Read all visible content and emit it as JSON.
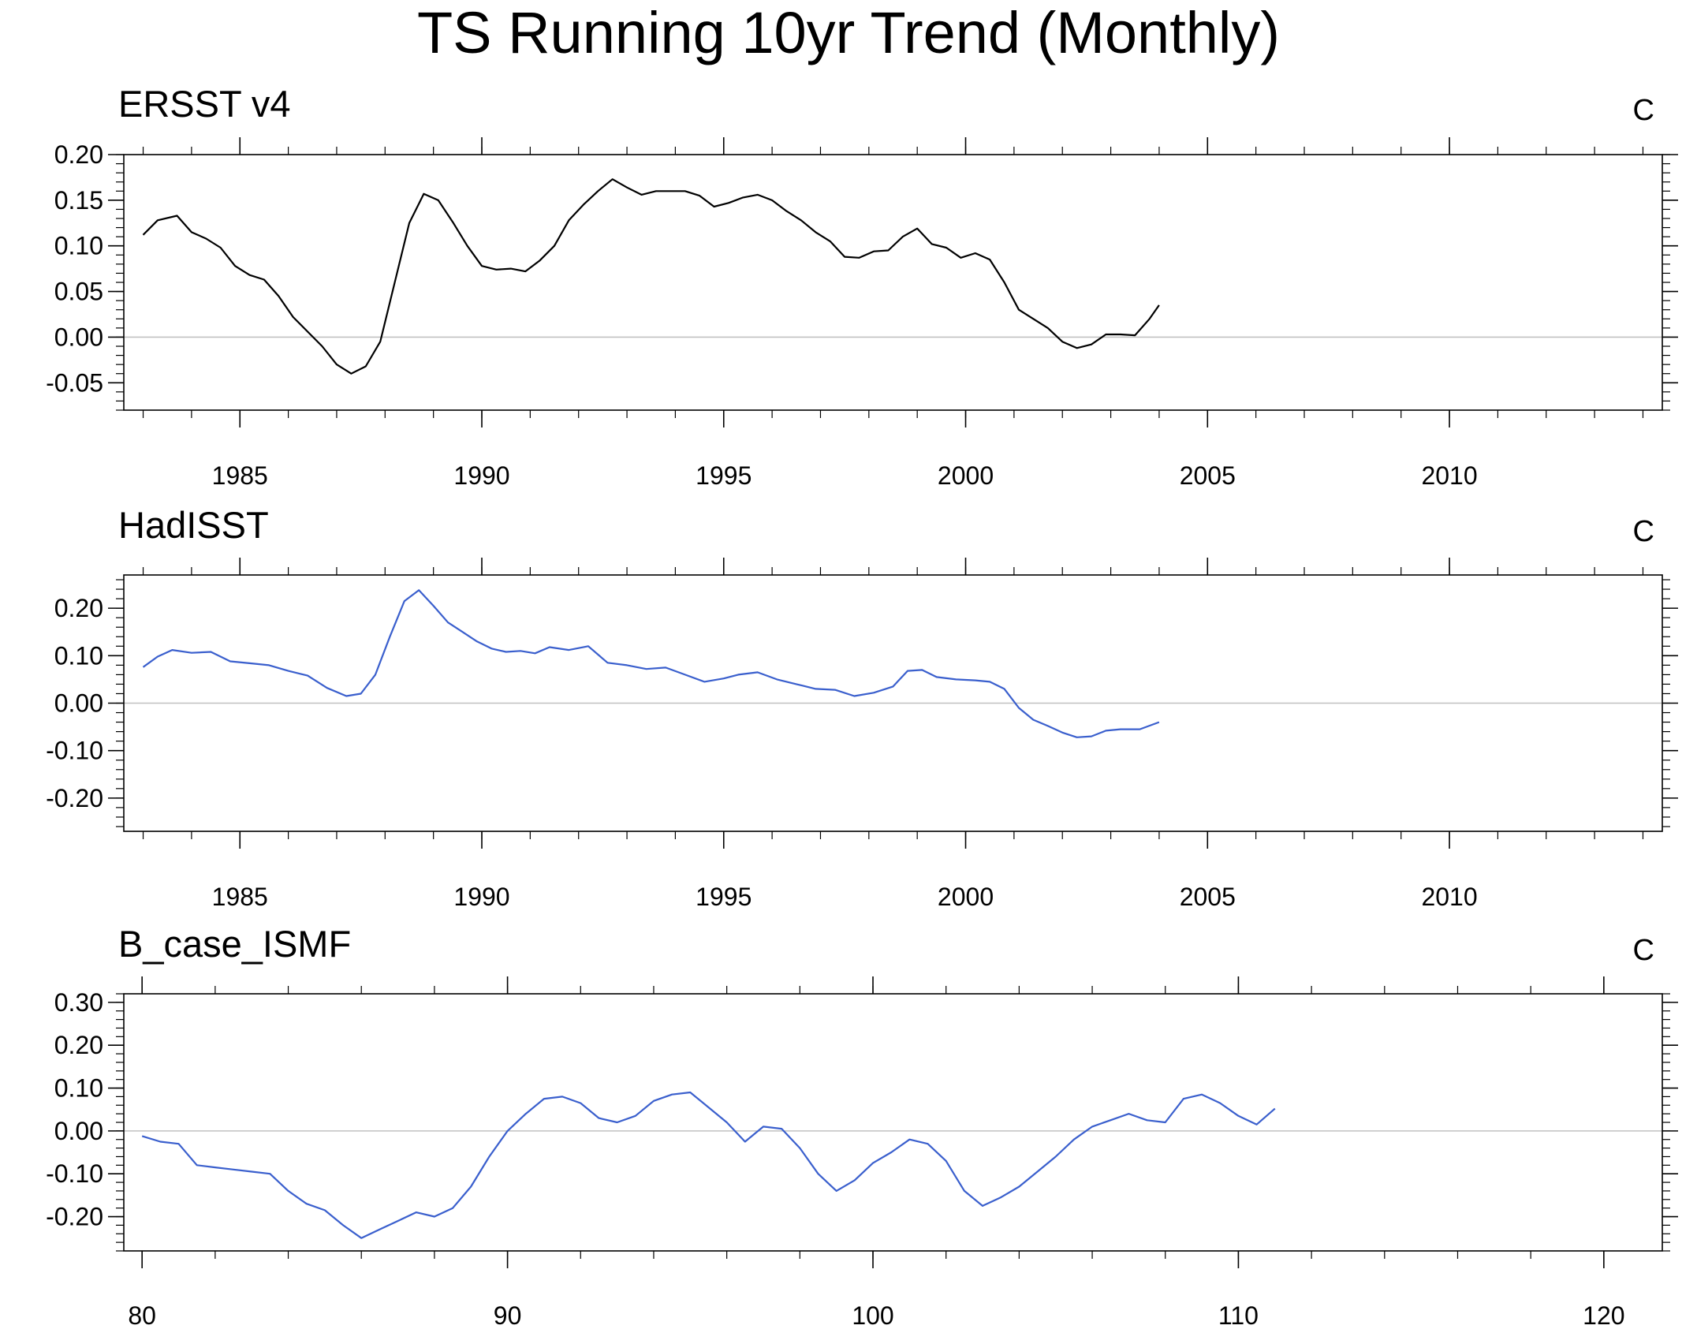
{
  "title": "TS Running 10yr Trend (Monthly)",
  "colors": {
    "ersst": "#000000",
    "model": "#3a5fcd",
    "zero_line": "#c0c0c0",
    "frame": "#000000"
  },
  "chart_data": [
    {
      "type": "line",
      "title": "ERSST v4",
      "unit": "C",
      "xlim": [
        1982.6,
        2014.4
      ],
      "ylim": [
        -0.08,
        0.2
      ],
      "x_ticks": [
        1985,
        1990,
        1995,
        2000,
        2005,
        2010
      ],
      "x_tick_labels": [
        "1985",
        "1990",
        "1995",
        "2000",
        "2005",
        "2010"
      ],
      "y_ticks": [
        -0.05,
        0.0,
        0.05,
        0.1,
        0.15,
        0.2
      ],
      "y_tick_labels": [
        "-0.05",
        "0.00",
        "0.05",
        "0.10",
        "0.15",
        "0.20"
      ],
      "zero_line": true,
      "series": [
        {
          "color": "#000000",
          "x": [
            1983.0,
            1983.3,
            1983.7,
            1984.0,
            1984.3,
            1984.6,
            1984.9,
            1985.2,
            1985.5,
            1985.8,
            1986.1,
            1986.4,
            1986.7,
            1987.0,
            1987.3,
            1987.6,
            1987.9,
            1988.2,
            1988.5,
            1988.8,
            1989.1,
            1989.4,
            1989.7,
            1990.0,
            1990.3,
            1990.6,
            1990.9,
            1991.2,
            1991.5,
            1991.8,
            1992.1,
            1992.4,
            1992.7,
            1993.0,
            1993.3,
            1993.6,
            1993.9,
            1994.2,
            1994.5,
            1994.8,
            1995.1,
            1995.4,
            1995.7,
            1996.0,
            1996.3,
            1996.6,
            1996.9,
            1997.2,
            1997.5,
            1997.8,
            1998.1,
            1998.4,
            1998.7,
            1999.0,
            1999.3,
            1999.6,
            1999.9,
            2000.2,
            2000.5,
            2000.8,
            2001.1,
            2001.4,
            2001.7,
            2002.0,
            2002.3,
            2002.6,
            2002.9,
            2003.2,
            2003.5,
            2003.8,
            2004.0
          ],
          "y": [
            0.112,
            0.128,
            0.133,
            0.115,
            0.108,
            0.098,
            0.078,
            0.068,
            0.063,
            0.045,
            0.022,
            0.006,
            -0.01,
            -0.03,
            -0.04,
            -0.032,
            -0.005,
            0.06,
            0.125,
            0.157,
            0.15,
            0.126,
            0.1,
            0.078,
            0.074,
            0.075,
            0.072,
            0.084,
            0.1,
            0.128,
            0.145,
            0.16,
            0.173,
            0.164,
            0.156,
            0.16,
            0.16,
            0.16,
            0.155,
            0.143,
            0.147,
            0.153,
            0.156,
            0.15,
            0.138,
            0.128,
            0.115,
            0.105,
            0.088,
            0.087,
            0.094,
            0.095,
            0.11,
            0.119,
            0.102,
            0.098,
            0.087,
            0.092,
            0.085,
            0.06,
            0.03,
            0.02,
            0.01,
            -0.005,
            -0.012,
            -0.008,
            0.003,
            0.003,
            0.002,
            0.02,
            0.035
          ]
        }
      ]
    },
    {
      "type": "line",
      "title": "HadISST",
      "unit": "C",
      "xlim": [
        1982.6,
        2014.4
      ],
      "ylim": [
        -0.27,
        0.27
      ],
      "x_ticks": [
        1985,
        1990,
        1995,
        2000,
        2005,
        2010
      ],
      "x_tick_labels": [
        "1985",
        "1990",
        "1995",
        "2000",
        "2005",
        "2010"
      ],
      "y_ticks": [
        -0.2,
        -0.1,
        0.0,
        0.1,
        0.2
      ],
      "y_tick_labels": [
        "-0.20",
        "-0.10",
        "0.00",
        "0.10",
        "0.20"
      ],
      "zero_line": true,
      "series": [
        {
          "color": "#3a5fcd",
          "x": [
            1983.0,
            1983.3,
            1983.6,
            1984.0,
            1984.4,
            1984.8,
            1985.2,
            1985.6,
            1986.0,
            1986.4,
            1986.8,
            1987.2,
            1987.5,
            1987.8,
            1988.1,
            1988.4,
            1988.7,
            1989.0,
            1989.3,
            1989.6,
            1989.9,
            1990.2,
            1990.5,
            1990.8,
            1991.1,
            1991.4,
            1991.8,
            1992.2,
            1992.6,
            1993.0,
            1993.4,
            1993.8,
            1994.2,
            1994.6,
            1995.0,
            1995.3,
            1995.7,
            1996.1,
            1996.5,
            1996.9,
            1997.3,
            1997.7,
            1998.1,
            1998.5,
            1998.8,
            1999.1,
            1999.4,
            1999.8,
            2000.2,
            2000.5,
            2000.8,
            2001.1,
            2001.4,
            2001.7,
            2002.0,
            2002.3,
            2002.6,
            2002.9,
            2003.2,
            2003.6,
            2004.0
          ],
          "y": [
            0.076,
            0.098,
            0.112,
            0.106,
            0.108,
            0.088,
            0.084,
            0.08,
            0.068,
            0.058,
            0.032,
            0.015,
            0.02,
            0.06,
            0.14,
            0.215,
            0.238,
            0.205,
            0.17,
            0.15,
            0.13,
            0.115,
            0.108,
            0.11,
            0.105,
            0.118,
            0.112,
            0.12,
            0.085,
            0.08,
            0.072,
            0.075,
            0.06,
            0.045,
            0.052,
            0.06,
            0.065,
            0.05,
            0.04,
            0.03,
            0.028,
            0.015,
            0.022,
            0.035,
            0.068,
            0.07,
            0.055,
            0.05,
            0.048,
            0.045,
            0.03,
            -0.01,
            -0.035,
            -0.048,
            -0.062,
            -0.072,
            -0.07,
            -0.058,
            -0.055,
            -0.055,
            -0.04
          ]
        }
      ]
    },
    {
      "type": "line",
      "title": "B_case_ISMF",
      "unit": "C",
      "xlim": [
        79.5,
        121.6
      ],
      "ylim": [
        -0.28,
        0.32
      ],
      "x_ticks": [
        80,
        90,
        100,
        110,
        120
      ],
      "x_tick_labels": [
        "80",
        "90",
        "100",
        "110",
        "120"
      ],
      "y_ticks": [
        -0.2,
        -0.1,
        0.0,
        0.1,
        0.2,
        0.3
      ],
      "y_tick_labels": [
        "-0.20",
        "-0.10",
        "0.00",
        "0.10",
        "0.20",
        "0.30"
      ],
      "zero_line": true,
      "series": [
        {
          "color": "#3a5fcd",
          "x": [
            80.0,
            80.5,
            81.0,
            81.5,
            82.0,
            82.5,
            83.0,
            83.5,
            84.0,
            84.5,
            85.0,
            85.5,
            86.0,
            86.5,
            87.0,
            87.5,
            88.0,
            88.5,
            89.0,
            89.5,
            90.0,
            90.5,
            91.0,
            91.5,
            92.0,
            92.5,
            93.0,
            93.5,
            94.0,
            94.5,
            95.0,
            95.5,
            96.0,
            96.5,
            97.0,
            97.5,
            98.0,
            98.5,
            99.0,
            99.5,
            100.0,
            100.5,
            101.0,
            101.5,
            102.0,
            102.5,
            103.0,
            103.5,
            104.0,
            104.5,
            105.0,
            105.5,
            106.0,
            106.5,
            107.0,
            107.5,
            108.0,
            108.5,
            109.0,
            109.5,
            110.0,
            110.5,
            111.0
          ],
          "y": [
            -0.012,
            -0.025,
            -0.03,
            -0.08,
            -0.085,
            -0.09,
            -0.095,
            -0.1,
            -0.14,
            -0.17,
            -0.185,
            -0.22,
            -0.25,
            -0.23,
            -0.21,
            -0.19,
            -0.2,
            -0.18,
            -0.13,
            -0.06,
            0.0,
            0.04,
            0.075,
            0.08,
            0.065,
            0.03,
            0.02,
            0.035,
            0.07,
            0.085,
            0.09,
            0.055,
            0.02,
            -0.025,
            0.01,
            0.005,
            -0.04,
            -0.1,
            -0.14,
            -0.115,
            -0.075,
            -0.05,
            -0.02,
            -0.03,
            -0.07,
            -0.14,
            -0.175,
            -0.155,
            -0.13,
            -0.095,
            -0.06,
            -0.02,
            0.01,
            0.025,
            0.04,
            0.025,
            0.02,
            0.075,
            0.085,
            0.065,
            0.035,
            0.015,
            0.052
          ]
        }
      ]
    }
  ]
}
